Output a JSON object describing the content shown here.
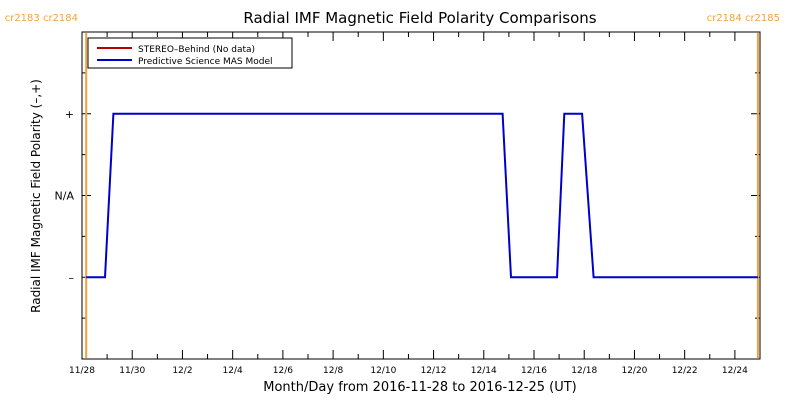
{
  "chart_data": {
    "type": "line",
    "title": "Radial IMF Magnetic Field Polarity Comparisons",
    "xlabel": "Month/Day from 2016-11-28 to 2016-12-25 (UT)",
    "ylabel": "Radial IMF Magnetic Field Polarity (–,+)",
    "x_tick_labels": [
      "11/28",
      "11/30",
      "12/2",
      "12/4",
      "12/6",
      "12/8",
      "12/10",
      "12/12",
      "12/14",
      "12/16",
      "12/18",
      "12/20",
      "12/22",
      "12/24"
    ],
    "y_tick_labels": [
      "+",
      "N/A",
      "–"
    ],
    "xlim": [
      "2016-11-28",
      "2016-12-25"
    ],
    "ylim": [
      -2,
      2
    ],
    "legend": {
      "position": "top-left",
      "entries": [
        {
          "name": "STEREO–Behind (No data)",
          "color": "#b40000"
        },
        {
          "name": "Predictive Science MAS Model",
          "color": "#0000cc"
        }
      ]
    },
    "carrington_rotation_markers": [
      {
        "label": "cr2183 cr2184",
        "date": "2016-11-28T04:00",
        "color": "#f2a23a"
      },
      {
        "label": "cr2184 cr2185",
        "date": "2016-12-24T22:00",
        "color": "#f2a23a"
      }
    ],
    "series": [
      {
        "name": "Predictive Science MAS Model",
        "color": "#0000cc",
        "points": [
          {
            "x": "2016-11-28T04:00",
            "y": -1
          },
          {
            "x": "2016-11-28T22:00",
            "y": -1
          },
          {
            "x": "2016-11-29T06:00",
            "y": 1
          },
          {
            "x": "2016-12-14T18:00",
            "y": 1
          },
          {
            "x": "2016-12-15T02:00",
            "y": -1
          },
          {
            "x": "2016-12-16T22:00",
            "y": -1
          },
          {
            "x": "2016-12-17T05:00",
            "y": 1
          },
          {
            "x": "2016-12-17T22:00",
            "y": 1
          },
          {
            "x": "2016-12-18T09:00",
            "y": -1
          },
          {
            "x": "2016-12-24T22:00",
            "y": -1
          }
        ]
      },
      {
        "name": "STEREO–Behind (No data)",
        "color": "#b40000",
        "points": []
      }
    ]
  }
}
